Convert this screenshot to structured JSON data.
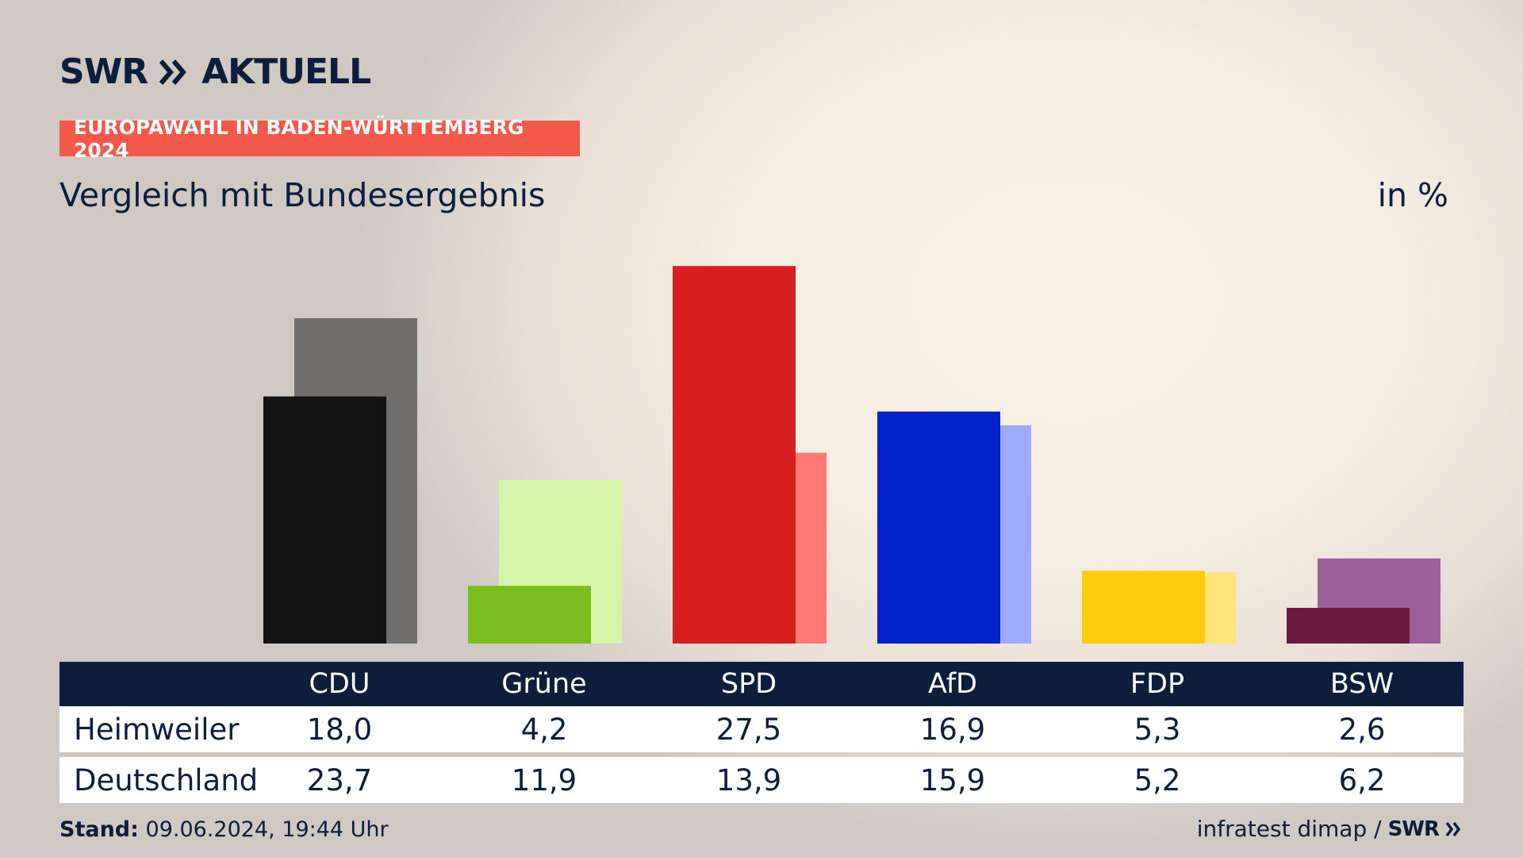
{
  "header": {
    "logo_text": "SWR",
    "logo_suffix": "AKTUELL",
    "tag": "EUROPAWAHL IN BADEN-WÜRTTEMBERG 2024",
    "subtitle": "Vergleich mit Bundesergebnis",
    "unit": "in %"
  },
  "chart_data": {
    "type": "bar",
    "title": "Vergleich mit Bundesergebnis",
    "unit": "in %",
    "categories": [
      "CDU",
      "Grüne",
      "SPD",
      "AfD",
      "FDP",
      "BSW"
    ],
    "series": [
      {
        "name": "Heimweiler",
        "values": [
          18.0,
          4.2,
          27.5,
          16.9,
          5.3,
          2.6
        ]
      },
      {
        "name": "Deutschland",
        "values": [
          23.7,
          11.9,
          13.9,
          15.9,
          5.2,
          6.2
        ]
      }
    ],
    "colors_front": [
      "#141414",
      "#7bbd1c",
      "#d81f1f",
      "#0022c8",
      "#ffcc0c",
      "#6a1b3f"
    ],
    "colors_back": [
      "#706f6d",
      "#d6f5a9",
      "#ff7873",
      "#9dabff",
      "#ffe479",
      "#9b5f9a"
    ],
    "ylim": [
      0,
      30
    ],
    "grid": false
  },
  "table": {
    "headers": [
      "CDU",
      "Grüne",
      "SPD",
      "AfD",
      "FDP",
      "BSW"
    ],
    "rows": [
      {
        "label": "Heimweiler",
        "values": [
          "18,0",
          "4,2",
          "27,5",
          "16,9",
          "5,3",
          "2,6"
        ]
      },
      {
        "label": "Deutschland",
        "values": [
          "23,7",
          "11,9",
          "13,9",
          "15,9",
          "5,2",
          "6,2"
        ]
      }
    ]
  },
  "footer": {
    "stand_label": "Stand:",
    "stand_value": "09.06.2024, 19:44 Uhr",
    "source": "infratest dimap /",
    "source_logo": "SWR"
  }
}
